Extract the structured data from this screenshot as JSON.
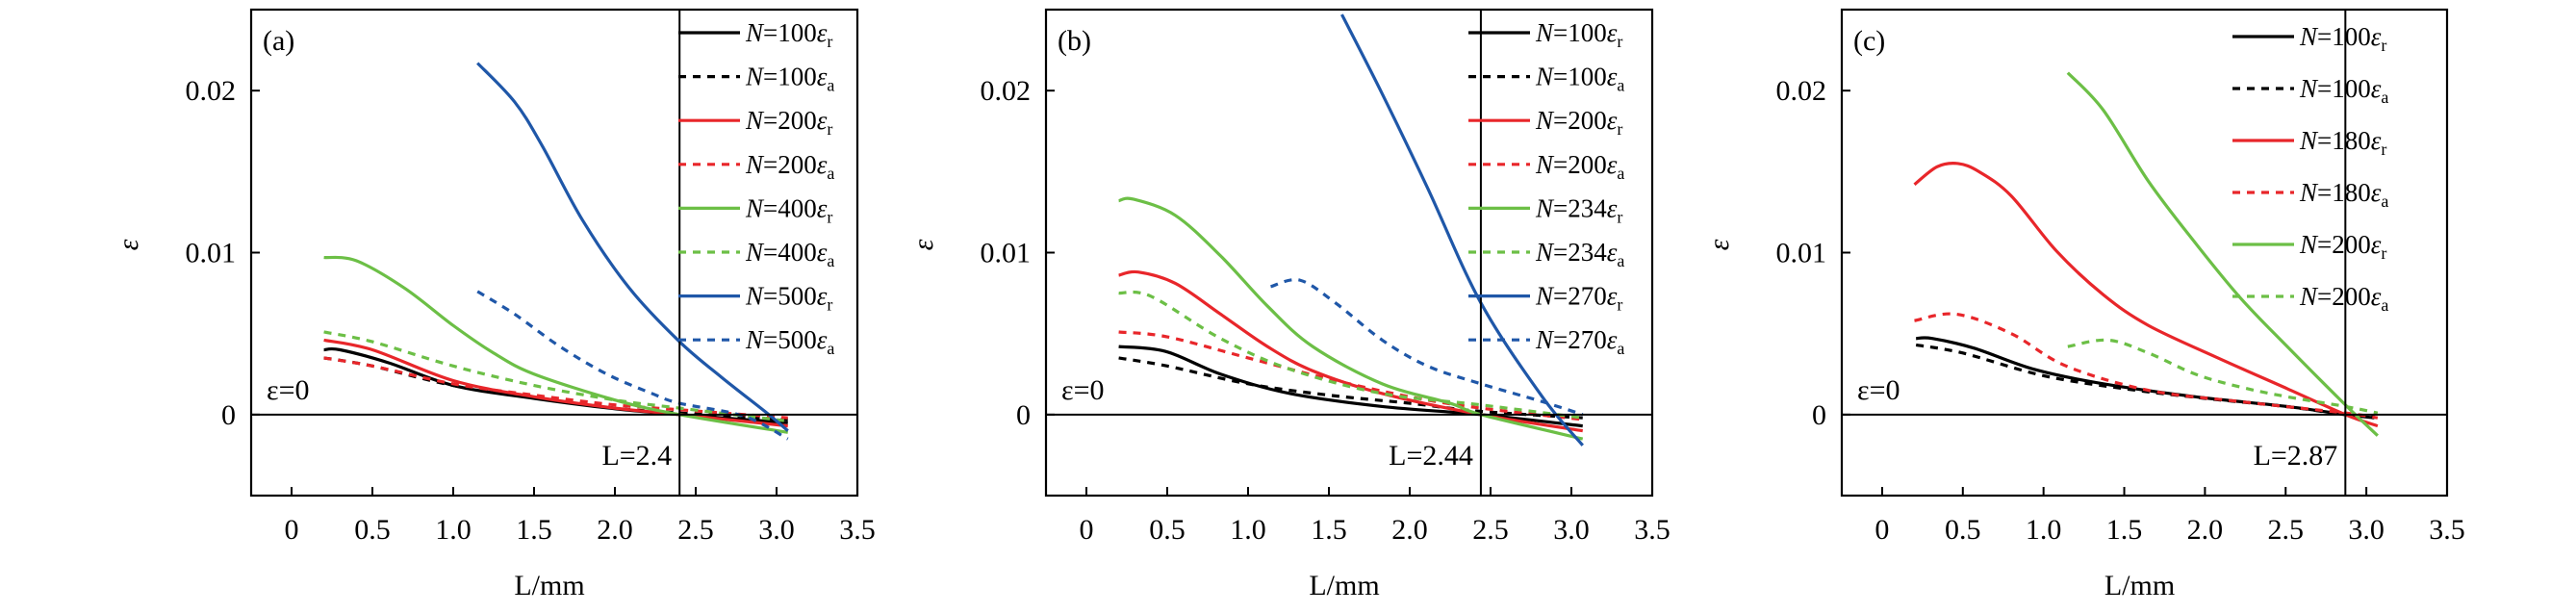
{
  "colors": {
    "black": "#000000",
    "red": "#e8262a",
    "green": "#6cbf46",
    "blue": "#1f57a8"
  },
  "chart_data": [
    {
      "type": "line",
      "panel_label": "(a)",
      "xlabel": "L/mm",
      "ylabel": "ε",
      "xlim": [
        -0.25,
        3.5
      ],
      "ylim": [
        -0.005,
        0.025
      ],
      "xticks": [
        "0",
        "0.5",
        "1.0",
        "1.5",
        "2.0",
        "2.5",
        "3.0",
        "3.5"
      ],
      "yticks": [
        "0",
        "0.01",
        "0.02"
      ],
      "grid": false,
      "legend": "top-right",
      "ref_line_x": 2.4,
      "ref_label_x": "L=2.4",
      "ref_label_y": "ε=0",
      "series": [
        {
          "name": "N=100εr",
          "color": "black",
          "dash": false,
          "x": [
            0.2,
            0.3,
            0.6,
            1.0,
            1.5,
            2.0,
            2.4,
            3.07
          ],
          "y": [
            0.004,
            0.004,
            0.0032,
            0.0018,
            0.001,
            0.00036,
            0,
            -0.0005
          ]
        },
        {
          "name": "N=100εa",
          "color": "black",
          "dash": true,
          "x": [
            0.2,
            0.5,
            1.0,
            1.5,
            2.0,
            2.4,
            3.07
          ],
          "y": [
            0.0035,
            0.003,
            0.0018,
            0.0011,
            0.0004,
            0.0001,
            -0.0003
          ]
        },
        {
          "name": "N=200εr",
          "color": "red",
          "dash": false,
          "x": [
            0.2,
            0.5,
            1.0,
            1.5,
            2.0,
            2.4,
            3.07
          ],
          "y": [
            0.0046,
            0.004,
            0.0021,
            0.0011,
            0.0004,
            0,
            -0.0007
          ]
        },
        {
          "name": "N=200εa",
          "color": "red",
          "dash": true,
          "x": [
            0.2,
            0.5,
            1.0,
            1.5,
            2.0,
            2.4,
            3.07
          ],
          "y": [
            0.0035,
            0.003,
            0.0019,
            0.0012,
            0.0006,
            0.0003,
            -0.0002
          ]
        },
        {
          "name": "N=400εr",
          "color": "green",
          "dash": false,
          "x": [
            0.2,
            0.4,
            0.7,
            1.0,
            1.25,
            1.5,
            2.0,
            2.4,
            3.07
          ],
          "y": [
            0.0097,
            0.0095,
            0.0078,
            0.0055,
            0.0038,
            0.0025,
            0.0009,
            0,
            -0.0011
          ]
        },
        {
          "name": "N=400εa",
          "color": "green",
          "dash": true,
          "x": [
            0.2,
            0.5,
            1.0,
            1.5,
            2.0,
            2.4,
            3.07
          ],
          "y": [
            0.0051,
            0.0045,
            0.003,
            0.0018,
            0.0009,
            0.0004,
            -0.0004
          ]
        },
        {
          "name": "N=500εr",
          "color": "blue",
          "dash": false,
          "x": [
            1.15,
            1.38,
            1.55,
            1.8,
            2.09,
            2.4,
            2.66,
            2.94,
            3.07
          ],
          "y": [
            0.0217,
            0.0193,
            0.0166,
            0.012,
            0.0078,
            0.0045,
            0.0023,
            0.0001,
            -0.001
          ]
        },
        {
          "name": "N=500εa",
          "color": "blue",
          "dash": true,
          "x": [
            1.15,
            1.38,
            1.66,
            1.95,
            2.23,
            2.4,
            2.8,
            3.07
          ],
          "y": [
            0.0076,
            0.0062,
            0.0042,
            0.0025,
            0.0013,
            0.0007,
            -0.0001,
            -0.0015
          ]
        }
      ]
    },
    {
      "type": "line",
      "panel_label": "(b)",
      "xlabel": "L/mm",
      "ylabel": "ε",
      "xlim": [
        -0.25,
        3.5
      ],
      "ylim": [
        -0.005,
        0.025
      ],
      "xticks": [
        "0",
        "0.5",
        "1.0",
        "1.5",
        "2.0",
        "2.5",
        "3.0",
        "3.5"
      ],
      "yticks": [
        "0",
        "0.01",
        "0.02"
      ],
      "grid": false,
      "legend": "top-right",
      "ref_line_x": 2.44,
      "ref_label_x": "L=2.44",
      "ref_label_y": "ε=0",
      "series": [
        {
          "name": "N=100εr",
          "color": "black",
          "dash": false,
          "x": [
            0.2,
            0.49,
            0.83,
            1.26,
            1.83,
            2.44,
            3.07
          ],
          "y": [
            0.0042,
            0.0039,
            0.0025,
            0.0013,
            0.0005,
            0,
            -0.0007
          ]
        },
        {
          "name": "N=100εa",
          "color": "black",
          "dash": true,
          "x": [
            0.2,
            0.5,
            1.0,
            1.5,
            2.0,
            2.44,
            3.07
          ],
          "y": [
            0.0035,
            0.003,
            0.0019,
            0.0012,
            0.0007,
            0.0002,
            -0.0002
          ]
        },
        {
          "name": "N=200εr",
          "color": "red",
          "dash": false,
          "x": [
            0.2,
            0.32,
            0.55,
            0.83,
            1.12,
            1.4,
            1.83,
            2.44,
            3.07
          ],
          "y": [
            0.0086,
            0.0088,
            0.0081,
            0.0062,
            0.0042,
            0.0027,
            0.0013,
            0,
            -0.001
          ]
        },
        {
          "name": "N=200εa",
          "color": "red",
          "dash": true,
          "x": [
            0.2,
            0.5,
            1.0,
            1.5,
            2.0,
            2.44,
            3.07
          ],
          "y": [
            0.0051,
            0.0048,
            0.0035,
            0.0022,
            0.0011,
            0.0004,
            -0.0003
          ]
        },
        {
          "name": "N=234εr",
          "color": "green",
          "dash": false,
          "x": [
            0.2,
            0.29,
            0.55,
            0.83,
            1.12,
            1.4,
            1.83,
            2.25,
            2.44,
            3.07
          ],
          "y": [
            0.0132,
            0.0133,
            0.0123,
            0.0098,
            0.0067,
            0.0042,
            0.0019,
            0.0007,
            0,
            -0.0015
          ]
        },
        {
          "name": "N=234εa",
          "color": "green",
          "dash": true,
          "x": [
            0.2,
            0.4,
            0.83,
            1.26,
            1.83,
            2.44,
            3.07
          ],
          "y": [
            0.0075,
            0.0073,
            0.0047,
            0.0028,
            0.0013,
            0.0006,
            -0.0002
          ]
        },
        {
          "name": "N=270εr",
          "color": "blue",
          "dash": false,
          "x": [
            1.58,
            1.83,
            2.11,
            2.44,
            2.82,
            3.07
          ],
          "y": [
            0.0247,
            0.0198,
            0.014,
            0.0069,
            0.0011,
            -0.0019
          ]
        },
        {
          "name": "N=270εa",
          "color": "blue",
          "dash": true,
          "x": [
            1.14,
            1.32,
            1.54,
            1.83,
            2.11,
            2.44,
            2.82,
            3.07
          ],
          "y": [
            0.0079,
            0.0083,
            0.0069,
            0.0046,
            0.003,
            0.0019,
            0.0008,
            0
          ]
        }
      ]
    },
    {
      "type": "line",
      "panel_label": "(c)",
      "xlabel": "L/mm",
      "ylabel": "ε",
      "xlim": [
        -0.25,
        3.5
      ],
      "ylim": [
        -0.005,
        0.025
      ],
      "xticks": [
        "0",
        "0.5",
        "1.0",
        "1.5",
        "2.0",
        "2.5",
        "3.0",
        "3.5"
      ],
      "yticks": [
        "0",
        "0.01",
        "0.02"
      ],
      "grid": false,
      "legend": "top-right",
      "ref_line_x": 2.87,
      "ref_label_x": "L=2.87",
      "ref_label_y": "ε=0",
      "series": [
        {
          "name": "N=100εr",
          "color": "black",
          "dash": false,
          "x": [
            0.21,
            0.31,
            0.57,
            0.94,
            1.37,
            1.94,
            2.51,
            2.87,
            3.05
          ],
          "y": [
            0.0047,
            0.0047,
            0.0041,
            0.0028,
            0.0019,
            0.0011,
            0.0005,
            0,
            -0.0002
          ]
        },
        {
          "name": "N=100εa",
          "color": "black",
          "dash": true,
          "x": [
            0.21,
            0.5,
            1.0,
            1.5,
            2.0,
            2.5,
            2.87,
            3.05
          ],
          "y": [
            0.0043,
            0.0038,
            0.0024,
            0.0016,
            0.001,
            0.0005,
            0,
            -0.0001
          ]
        },
        {
          "name": "N=180εr",
          "color": "red",
          "dash": false,
          "x": [
            0.2,
            0.34,
            0.47,
            0.6,
            0.8,
            1.08,
            1.37,
            1.65,
            2.08,
            2.51,
            2.87,
            3.07
          ],
          "y": [
            0.0142,
            0.0153,
            0.0155,
            0.015,
            0.0135,
            0.0101,
            0.0074,
            0.0055,
            0.0035,
            0.0016,
            0,
            -0.0007
          ]
        },
        {
          "name": "N=180εa",
          "color": "red",
          "dash": true,
          "x": [
            0.2,
            0.46,
            0.8,
            1.14,
            1.65,
            2.22,
            2.87,
            3.07
          ],
          "y": [
            0.0058,
            0.0062,
            0.005,
            0.003,
            0.0015,
            0.0008,
            0.0001,
            -0.0002
          ]
        },
        {
          "name": "N=200εr",
          "color": "green",
          "dash": false,
          "x": [
            1.15,
            1.37,
            1.65,
            1.94,
            2.22,
            2.51,
            2.87,
            3.07
          ],
          "y": [
            0.0211,
            0.0188,
            0.0144,
            0.0106,
            0.0072,
            0.0042,
            0.0006,
            -0.0013
          ]
        },
        {
          "name": "N=200εa",
          "color": "green",
          "dash": true,
          "x": [
            1.15,
            1.4,
            1.65,
            1.94,
            2.22,
            2.51,
            2.87,
            3.07
          ],
          "y": [
            0.0042,
            0.0046,
            0.0038,
            0.0025,
            0.0017,
            0.0011,
            0.0005,
            0.0001
          ]
        }
      ]
    }
  ]
}
